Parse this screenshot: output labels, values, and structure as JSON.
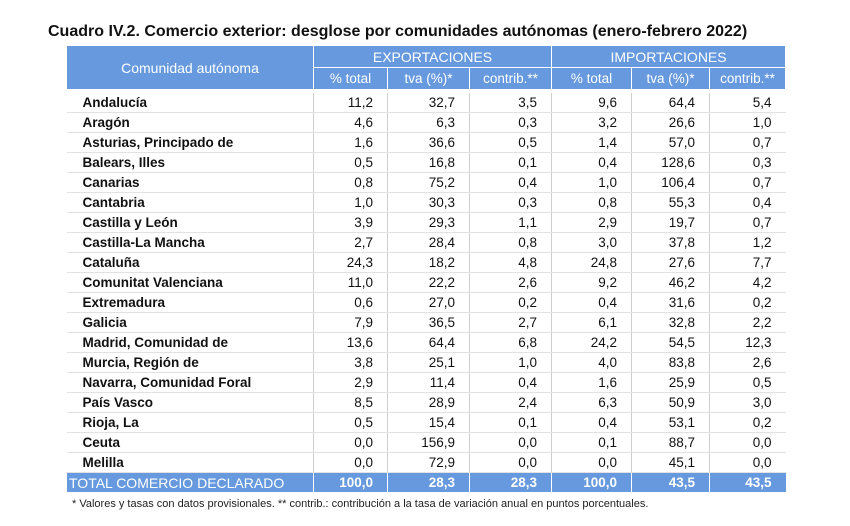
{
  "title": "Cuadro IV.2. Comercio exterior: desglose por comunidades autónomas (enero-febrero 2022)",
  "table": {
    "corner": "Comunidad autónoma",
    "groups": [
      "EXPORTACIONES",
      "IMPORTACIONES"
    ],
    "subheaders": [
      "% total",
      "tva (%)*",
      "contrib.**",
      "% total",
      "tva (%)*",
      "contrib.**"
    ],
    "rows": [
      [
        "Andalucía",
        "11,2",
        "32,7",
        "3,5",
        "9,6",
        "64,4",
        "5,4"
      ],
      [
        "Aragón",
        "4,6",
        "6,3",
        "0,3",
        "3,2",
        "26,6",
        "1,0"
      ],
      [
        "Asturias, Principado de",
        "1,6",
        "36,6",
        "0,5",
        "1,4",
        "57,0",
        "0,7"
      ],
      [
        "Balears, Illes",
        "0,5",
        "16,8",
        "0,1",
        "0,4",
        "128,6",
        "0,3"
      ],
      [
        "Canarias",
        "0,8",
        "75,2",
        "0,4",
        "1,0",
        "106,4",
        "0,7"
      ],
      [
        "Cantabria",
        "1,0",
        "30,3",
        "0,3",
        "0,8",
        "55,3",
        "0,4"
      ],
      [
        "Castilla y León",
        "3,9",
        "29,3",
        "1,1",
        "2,9",
        "19,7",
        "0,7"
      ],
      [
        "Castilla-La Mancha",
        "2,7",
        "28,4",
        "0,8",
        "3,0",
        "37,8",
        "1,2"
      ],
      [
        "Cataluña",
        "24,3",
        "18,2",
        "4,8",
        "24,8",
        "27,6",
        "7,7"
      ],
      [
        "Comunitat Valenciana",
        "11,0",
        "22,2",
        "2,6",
        "9,2",
        "46,2",
        "4,2"
      ],
      [
        "Extremadura",
        "0,6",
        "27,0",
        "0,2",
        "0,4",
        "31,6",
        "0,2"
      ],
      [
        "Galicia",
        "7,9",
        "36,5",
        "2,7",
        "6,1",
        "32,8",
        "2,2"
      ],
      [
        "Madrid, Comunidad de",
        "13,6",
        "64,4",
        "6,8",
        "24,2",
        "54,5",
        "12,3"
      ],
      [
        "Murcia, Región de",
        "3,8",
        "25,1",
        "1,0",
        "4,0",
        "83,8",
        "2,6"
      ],
      [
        "Navarra, Comunidad Foral",
        "2,9",
        "11,4",
        "0,4",
        "1,6",
        "25,9",
        "0,5"
      ],
      [
        "País Vasco",
        "8,5",
        "28,9",
        "2,4",
        "6,3",
        "50,9",
        "3,0"
      ],
      [
        "Rioja, La",
        "0,5",
        "15,4",
        "0,1",
        "0,4",
        "53,1",
        "0,2"
      ],
      [
        "Ceuta",
        "0,0",
        "156,9",
        "0,0",
        "0,1",
        "88,7",
        "0,0"
      ],
      [
        "Melilla",
        "0,0",
        "72,9",
        "0,0",
        "0,0",
        "45,1",
        "0,0"
      ]
    ],
    "total": [
      "TOTAL COMERCIO DECLARADO",
      "100,0",
      "28,3",
      "28,3",
      "100,0",
      "43,5",
      "43,5"
    ]
  },
  "footnote": "* Valores y tasas con datos provisionales. ** contrib.: contribución a la tasa de variación anual en puntos porcentuales."
}
